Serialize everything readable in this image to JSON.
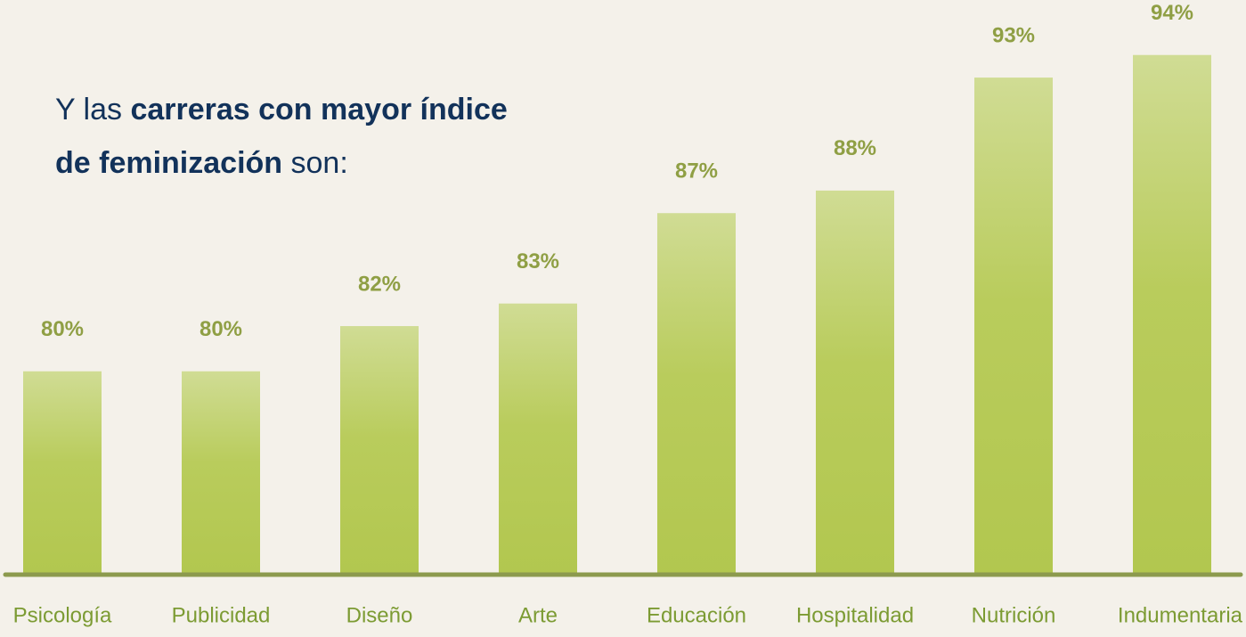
{
  "chart_data": {
    "type": "bar",
    "title": [
      "Y las",
      "carreras con mayor índice",
      "de feminización",
      "son:"
    ],
    "categories": [
      "Psicología",
      "Publicidad",
      "Diseño",
      "Arte",
      "Educación",
      "Hospitalidad",
      "Nutrición",
      "Indumentaria"
    ],
    "values": [
      80,
      80,
      82,
      83,
      87,
      88,
      93,
      94
    ],
    "value_labels": [
      "80%",
      "80%",
      "82%",
      "83%",
      "87%",
      "88%",
      "93%",
      "94%"
    ],
    "color": "#b5c955",
    "ylim": [
      71,
      96
    ]
  }
}
